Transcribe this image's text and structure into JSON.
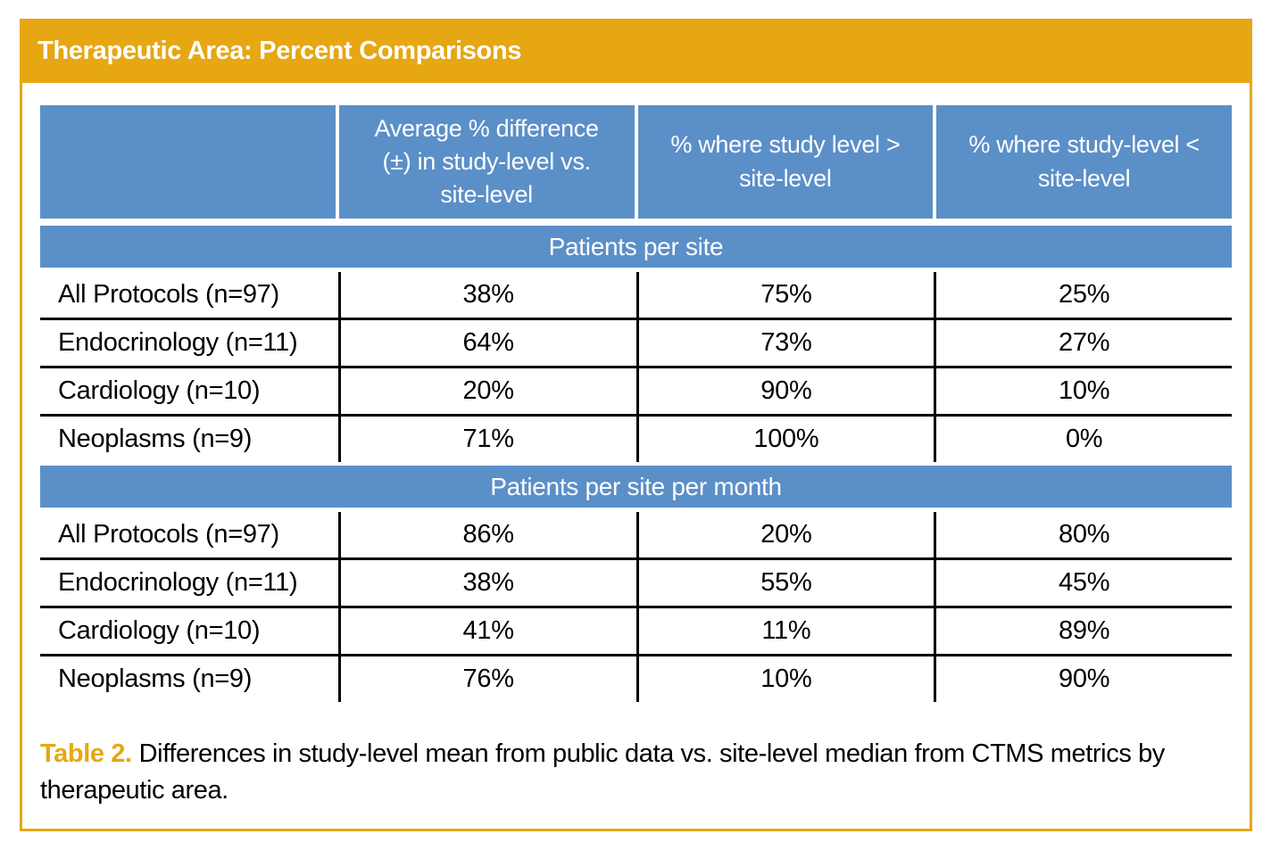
{
  "panel": {
    "title": "Therapeutic Area: Percent Comparisons"
  },
  "table": {
    "column_headers": [
      "",
      "Average % difference (±) in study-level vs. site-level",
      "% where study level > site-level",
      "% where study-level < site-level"
    ],
    "sections": [
      {
        "label": "Patients per site",
        "rows": [
          {
            "label": "All Protocols (n=97)",
            "values": [
              "38%",
              "75%",
              "25%"
            ]
          },
          {
            "label": "Endocrinology (n=11)",
            "values": [
              "64%",
              "73%",
              "27%"
            ]
          },
          {
            "label": "Cardiology (n=10)",
            "values": [
              "20%",
              "90%",
              "10%"
            ]
          },
          {
            "label": "Neoplasms (n=9)",
            "values": [
              "71%",
              "100%",
              "0%"
            ]
          }
        ]
      },
      {
        "label": "Patients per site per month",
        "rows": [
          {
            "label": "All Protocols (n=97)",
            "values": [
              "86%",
              "20%",
              "80%"
            ]
          },
          {
            "label": "Endocrinology (n=11)",
            "values": [
              "38%",
              "55%",
              "45%"
            ]
          },
          {
            "label": "Cardiology (n=10)",
            "values": [
              "41%",
              "11%",
              "89%"
            ]
          },
          {
            "label": "Neoplasms (n=9)",
            "values": [
              "76%",
              "10%",
              "90%"
            ]
          }
        ]
      }
    ]
  },
  "caption": {
    "label": "Table 2.",
    "text": "Differences in study-level mean from public data vs. site-level median from CTMS metrics by therapeutic area."
  },
  "colors": {
    "accent_gold": "#E6A713",
    "header_blue": "#5B8FC8",
    "grid_line_black": "#000000",
    "header_text_white": "#FFFFFF",
    "body_text_black": "#000000"
  }
}
